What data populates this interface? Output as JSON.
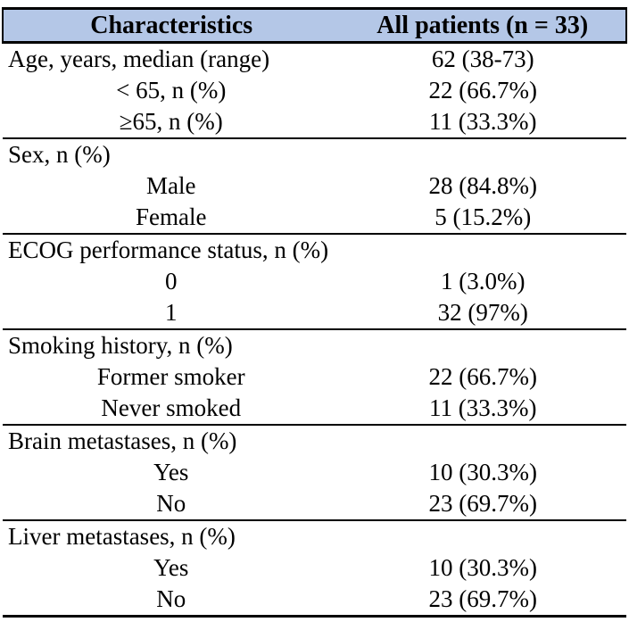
{
  "table": {
    "columns": [
      "Characteristics",
      "All patients (n = 33)"
    ],
    "sections": [
      {
        "header": {
          "label": "Age, years, median (range)",
          "value": "62 (38-73)"
        },
        "rows": [
          {
            "label": "< 65, n (%)",
            "value": "22 (66.7%)"
          },
          {
            "label": "≥65, n (%)",
            "value": "11 (33.3%)"
          }
        ]
      },
      {
        "header": {
          "label": "Sex, n (%)",
          "value": ""
        },
        "rows": [
          {
            "label": "Male",
            "value": "28 (84.8%)"
          },
          {
            "label": "Female",
            "value": "5 (15.2%)"
          }
        ]
      },
      {
        "header": {
          "label": "ECOG performance status, n (%)",
          "value": ""
        },
        "rows": [
          {
            "label": "0",
            "value": "1 (3.0%)"
          },
          {
            "label": "1",
            "value": "32 (97%)"
          }
        ]
      },
      {
        "header": {
          "label": "Smoking history, n (%)",
          "value": ""
        },
        "rows": [
          {
            "label": "Former smoker",
            "value": "22 (66.7%)"
          },
          {
            "label": "Never smoked",
            "value": "11 (33.3%)"
          }
        ]
      },
      {
        "header": {
          "label": "Brain metastases, n (%)",
          "value": ""
        },
        "rows": [
          {
            "label": "Yes",
            "value": "10 (30.3%)"
          },
          {
            "label": "No",
            "value": "23 (69.7%)"
          }
        ]
      },
      {
        "header": {
          "label": "Liver metastases, n (%)",
          "value": ""
        },
        "rows": [
          {
            "label": "Yes",
            "value": "10 (30.3%)"
          },
          {
            "label": "No",
            "value": "23 (69.7%)"
          }
        ]
      }
    ],
    "colors": {
      "header_bg": "#b4c7e7",
      "border": "#000000",
      "text": "#000000"
    }
  },
  "chart_data": {
    "type": "table",
    "columns": [
      "Characteristics",
      "All patients (n = 33)"
    ],
    "rows": [
      [
        "Age, years, median (range)",
        "62 (38-73)"
      ],
      [
        "< 65, n (%)",
        "22 (66.7%)"
      ],
      [
        "≥65, n (%)",
        "11 (33.3%)"
      ],
      [
        "Sex, n (%)",
        ""
      ],
      [
        "Male",
        "28 (84.8%)"
      ],
      [
        "Female",
        "5 (15.2%)"
      ],
      [
        "ECOG performance status, n (%)",
        ""
      ],
      [
        "0",
        "1 (3.0%)"
      ],
      [
        "1",
        "32 (97%)"
      ],
      [
        "Smoking history, n (%)",
        ""
      ],
      [
        "Former smoker",
        "22 (66.7%)"
      ],
      [
        "Never smoked",
        "11 (33.3%)"
      ],
      [
        "Brain metastases, n (%)",
        ""
      ],
      [
        "Yes",
        "10 (30.3%)"
      ],
      [
        "No",
        "23 (69.7%)"
      ],
      [
        "Liver metastases, n (%)",
        ""
      ],
      [
        "Yes",
        "10 (30.3%)"
      ],
      [
        "No",
        "23 (69.7%)"
      ]
    ]
  }
}
